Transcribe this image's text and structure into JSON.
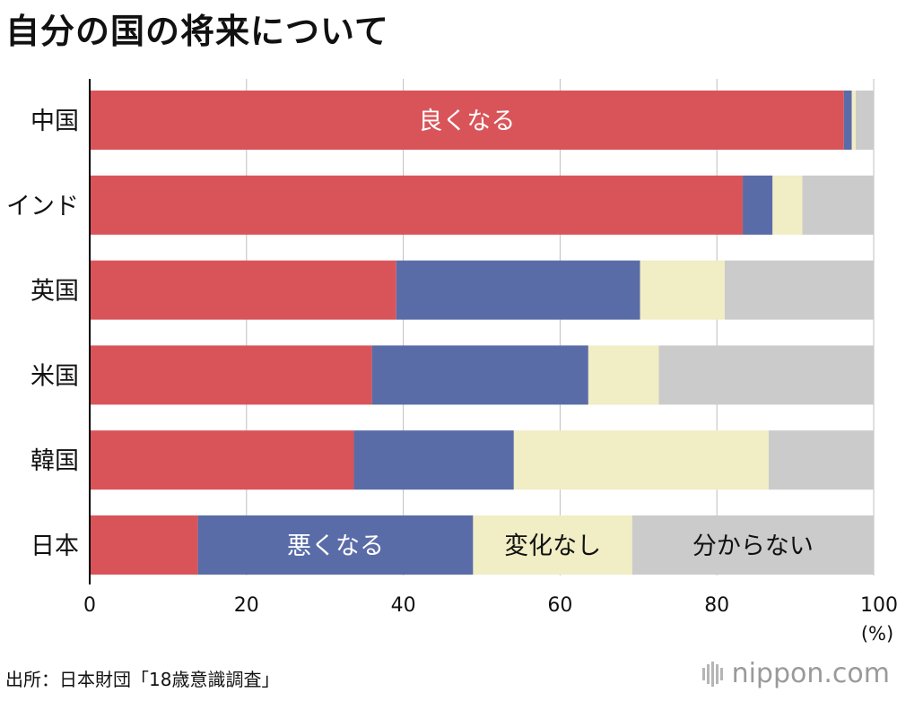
{
  "title": "自分の国の将来について",
  "source": "出所：日本財団「18歳意識調査」",
  "logo": {
    "text": "nippon.com",
    "mark": "logo-bars-icon"
  },
  "colors": {
    "better": "#d95459",
    "worse": "#5a6ca8",
    "no_change": "#f1edc4",
    "dont_know": "#cbcbcb",
    "axis": "#000000",
    "grid": "#bfbfbf",
    "label_on_bar": "#ffffff",
    "label_dark": "#111111"
  },
  "chart_data": {
    "type": "bar",
    "orientation": "horizontal",
    "stacked": true,
    "title": "自分の国の将来について",
    "categories": [
      "中国",
      "インド",
      "英国",
      "米国",
      "韓国",
      "日本"
    ],
    "series": [
      {
        "name": "良くなる",
        "values": [
          96.2,
          83.3,
          39.1,
          36.0,
          33.7,
          13.8
        ]
      },
      {
        "name": "悪くなる",
        "values": [
          1.0,
          3.8,
          31.1,
          27.6,
          20.4,
          35.1
        ]
      },
      {
        "name": "変化なし",
        "values": [
          0.5,
          3.8,
          10.8,
          9.0,
          32.5,
          20.3
        ]
      },
      {
        "name": "分からない",
        "values": [
          2.3,
          9.1,
          19.0,
          27.4,
          13.4,
          30.8
        ]
      }
    ],
    "in_bar_labels": [
      {
        "series": 0,
        "category": 0,
        "text": "良くなる"
      },
      {
        "series": 1,
        "category": 5,
        "text": "悪くなる"
      },
      {
        "series": 2,
        "category": 5,
        "text": "変化なし"
      },
      {
        "series": 3,
        "category": 5,
        "text": "分からない"
      }
    ],
    "x_ticks": [
      0,
      20,
      40,
      60,
      80,
      100
    ],
    "x_unit": "(%)",
    "xlim": [
      0,
      100
    ],
    "xlabel": "",
    "ylabel": "",
    "grid": true,
    "legend": "none"
  }
}
